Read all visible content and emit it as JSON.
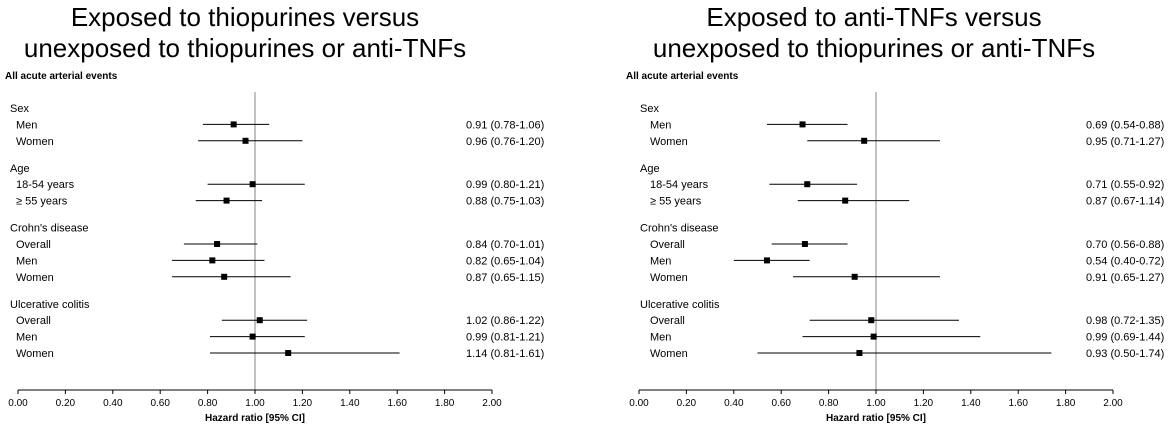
{
  "chart_data": [
    {
      "type": "forest",
      "title_lines": [
        "Exposed to thiopurines versus",
        "unexposed to thiopurines or anti-TNFs"
      ],
      "subtitle": "All acute arterial events",
      "xlabel": "Hazard ratio [95% CI]",
      "xlim": [
        0,
        2
      ],
      "xticks": [
        "0.00",
        "0.20",
        "0.40",
        "0.60",
        "0.80",
        "1.00",
        "1.20",
        "1.40",
        "1.60",
        "1.80",
        "2.00"
      ],
      "reference_line": 1,
      "rows": [
        {
          "kind": "group",
          "label": "Sex"
        },
        {
          "kind": "item",
          "label": "Men",
          "hr": 0.91,
          "lo": 0.78,
          "hi": 1.06,
          "text": "0.91 (0.78-1.06)"
        },
        {
          "kind": "item",
          "label": "Women",
          "hr": 0.96,
          "lo": 0.76,
          "hi": 1.2,
          "text": "0.96 (0.76-1.20)"
        },
        {
          "kind": "group",
          "label": "Age"
        },
        {
          "kind": "item",
          "label": "18-54 years",
          "hr": 0.99,
          "lo": 0.8,
          "hi": 1.21,
          "text": "0.99 (0.80-1.21)"
        },
        {
          "kind": "item",
          "label": "≥ 55 years",
          "hr": 0.88,
          "lo": 0.75,
          "hi": 1.03,
          "text": "0.88 (0.75-1.03)"
        },
        {
          "kind": "group",
          "label": "Crohn's disease"
        },
        {
          "kind": "item",
          "label": "Overall",
          "hr": 0.84,
          "lo": 0.7,
          "hi": 1.01,
          "text": "0.84 (0.70-1.01)"
        },
        {
          "kind": "item",
          "label": "Men",
          "hr": 0.82,
          "lo": 0.65,
          "hi": 1.04,
          "text": "0.82 (0.65-1.04)"
        },
        {
          "kind": "item",
          "label": "Women",
          "hr": 0.87,
          "lo": 0.65,
          "hi": 1.15,
          "text": "0.87 (0.65-1.15)"
        },
        {
          "kind": "group",
          "label": "Ulcerative colitis"
        },
        {
          "kind": "item",
          "label": "Overall",
          "hr": 1.02,
          "lo": 0.86,
          "hi": 1.22,
          "text": "1.02 (0.86-1.22)"
        },
        {
          "kind": "item",
          "label": "Men",
          "hr": 0.99,
          "lo": 0.81,
          "hi": 1.21,
          "text": "0.99 (0.81-1.21)"
        },
        {
          "kind": "item",
          "label": "Women",
          "hr": 1.14,
          "lo": 0.81,
          "hi": 1.61,
          "text": "1.14 (0.81-1.61)"
        }
      ]
    },
    {
      "type": "forest",
      "title_lines": [
        "Exposed to anti-TNFs versus",
        "unexposed to thiopurines or anti-TNFs"
      ],
      "subtitle": "All acute arterial events",
      "xlabel": "Hazard ratio [95% CI]",
      "xlim": [
        0,
        2
      ],
      "xticks": [
        "0.00",
        "0.20",
        "0.40",
        "0.60",
        "0.80",
        "1.00",
        "1.20",
        "1.40",
        "1.60",
        "1.80",
        "2.00"
      ],
      "reference_line": 1,
      "rows": [
        {
          "kind": "group",
          "label": "Sex"
        },
        {
          "kind": "item",
          "label": "Men",
          "hr": 0.69,
          "lo": 0.54,
          "hi": 0.88,
          "text": "0.69 (0.54-0.88)"
        },
        {
          "kind": "item",
          "label": "Women",
          "hr": 0.95,
          "lo": 0.71,
          "hi": 1.27,
          "text": "0.95 (0.71-1.27)"
        },
        {
          "kind": "group",
          "label": "Age"
        },
        {
          "kind": "item",
          "label": "18-54 years",
          "hr": 0.71,
          "lo": 0.55,
          "hi": 0.92,
          "text": "0.71 (0.55-0.92)"
        },
        {
          "kind": "item",
          "label": "≥ 55 years",
          "hr": 0.87,
          "lo": 0.67,
          "hi": 1.14,
          "text": "0.87 (0.67-1.14)"
        },
        {
          "kind": "group",
          "label": "Crohn's disease"
        },
        {
          "kind": "item",
          "label": "Overall",
          "hr": 0.7,
          "lo": 0.56,
          "hi": 0.88,
          "text": "0.70 (0.56-0.88)"
        },
        {
          "kind": "item",
          "label": "Men",
          "hr": 0.54,
          "lo": 0.4,
          "hi": 0.72,
          "text": "0.54 (0.40-0.72)"
        },
        {
          "kind": "item",
          "label": "Women",
          "hr": 0.91,
          "lo": 0.65,
          "hi": 1.27,
          "text": "0.91 (0.65-1.27)"
        },
        {
          "kind": "group",
          "label": "Ulcerative colitis"
        },
        {
          "kind": "item",
          "label": "Overall",
          "hr": 0.98,
          "lo": 0.72,
          "hi": 1.35,
          "text": "0.98 (0.72-1.35)"
        },
        {
          "kind": "item",
          "label": "Men",
          "hr": 0.99,
          "lo": 0.69,
          "hi": 1.44,
          "text": "0.99 (0.69-1.44)"
        },
        {
          "kind": "item",
          "label": "Women",
          "hr": 0.93,
          "lo": 0.5,
          "hi": 1.74,
          "text": "0.93 (0.50-1.74)"
        }
      ]
    }
  ]
}
